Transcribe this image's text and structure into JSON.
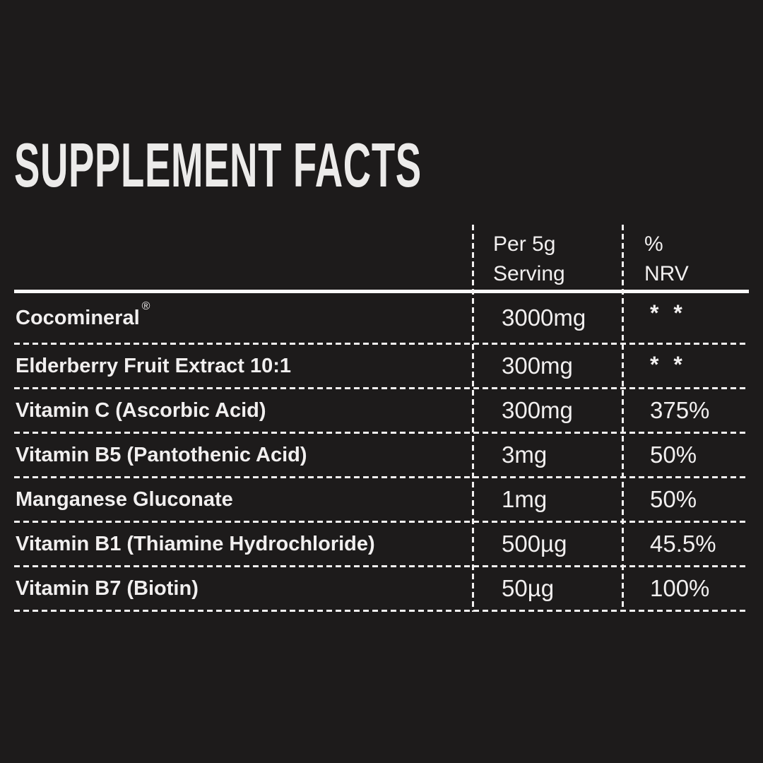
{
  "colors": {
    "background": "#1d1b1b",
    "text": "#f1efef",
    "line": "#fbfafa"
  },
  "title": "SUPPLEMENT FACTS",
  "table": {
    "columns": [
      {
        "label": ""
      },
      {
        "label": "Per 5g Serving",
        "line1": "Per 5g",
        "line2": "Serving"
      },
      {
        "label": "% NRV",
        "line1": "%",
        "line2": "NRV"
      }
    ],
    "rows": [
      {
        "name": "Cocomineral",
        "trademark": "®",
        "amount": "3000mg",
        "nrv": "* *"
      },
      {
        "name": "Elderberry Fruit Extract 10:1",
        "amount": "300mg",
        "nrv": "* *"
      },
      {
        "name": "Vitamin C (Ascorbic Acid)",
        "amount": "300mg",
        "nrv": "375%"
      },
      {
        "name": "Vitamin B5 (Pantothenic Acid)",
        "amount": "3mg",
        "nrv": "50%"
      },
      {
        "name": "Manganese Gluconate",
        "amount": "1mg",
        "nrv": "50%"
      },
      {
        "name": "Vitamin B1 (Thiamine Hydrochloride)",
        "amount": "500µg",
        "nrv": "45.5%"
      },
      {
        "name": "Vitamin B7 (Biotin)",
        "amount": "50µg",
        "nrv": "100%"
      }
    ]
  }
}
